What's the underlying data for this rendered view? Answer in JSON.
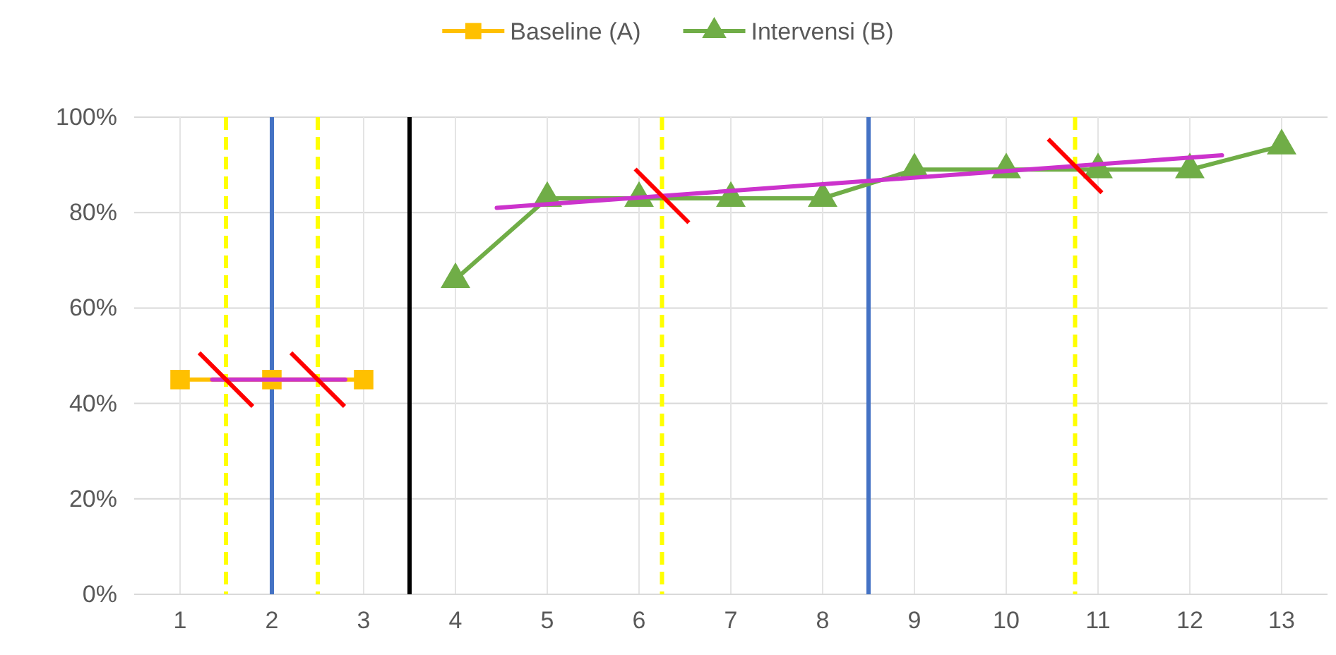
{
  "chart_data": {
    "type": "line",
    "xlim": [
      0.5,
      13.5
    ],
    "xticks": [
      1,
      2,
      3,
      4,
      5,
      6,
      7,
      8,
      9,
      10,
      11,
      12,
      13
    ],
    "ylim": [
      0,
      100
    ],
    "yticks": [
      {
        "value": 0,
        "label": "0%"
      },
      {
        "value": 20,
        "label": "20%"
      },
      {
        "value": 40,
        "label": "40%"
      },
      {
        "value": 60,
        "label": "60%"
      },
      {
        "value": 80,
        "label": "80%"
      },
      {
        "value": 100,
        "label": "100%"
      }
    ],
    "grid": true,
    "legend": "top",
    "series": [
      {
        "name": "Baseline (A)",
        "color": "#ffc000",
        "marker": "square",
        "x": [
          1,
          2,
          3
        ],
        "values": [
          45,
          45,
          45
        ]
      },
      {
        "name": "Intervensi (B)",
        "color": "#70ad47",
        "marker": "triangle",
        "x": [
          4,
          5,
          6,
          7,
          8,
          9,
          10,
          11,
          12,
          13
        ],
        "values": [
          66,
          83,
          83,
          83,
          83,
          89,
          89,
          89,
          89,
          94
        ]
      },
      {
        "type": "line",
        "color": "#cc33cc",
        "marker": "none",
        "x": [
          1.35,
          2.8
        ],
        "values": [
          45,
          45
        ]
      },
      {
        "type": "line",
        "color": "#cc33cc",
        "marker": "none",
        "x": [
          4.45,
          12.35
        ],
        "values": [
          81,
          92
        ]
      }
    ],
    "ref_lines": [
      {
        "axis": "x",
        "value": 1.5,
        "color": "#ffff00",
        "line_style": "dashed"
      },
      {
        "axis": "x",
        "value": 2.5,
        "color": "#ffff00",
        "line_style": "dashed"
      },
      {
        "axis": "x",
        "value": 6.25,
        "color": "#ffff00",
        "line_style": "dashed"
      },
      {
        "axis": "x",
        "value": 10.75,
        "color": "#ffff00",
        "line_style": "dashed"
      },
      {
        "axis": "x",
        "value": 2,
        "color": "#4472c4",
        "line_style": "solid"
      },
      {
        "axis": "x",
        "value": 8.5,
        "color": "#4472c4",
        "line_style": "solid"
      },
      {
        "axis": "x",
        "value": 3.5,
        "color": "#000000",
        "line_style": "solid"
      }
    ]
  }
}
